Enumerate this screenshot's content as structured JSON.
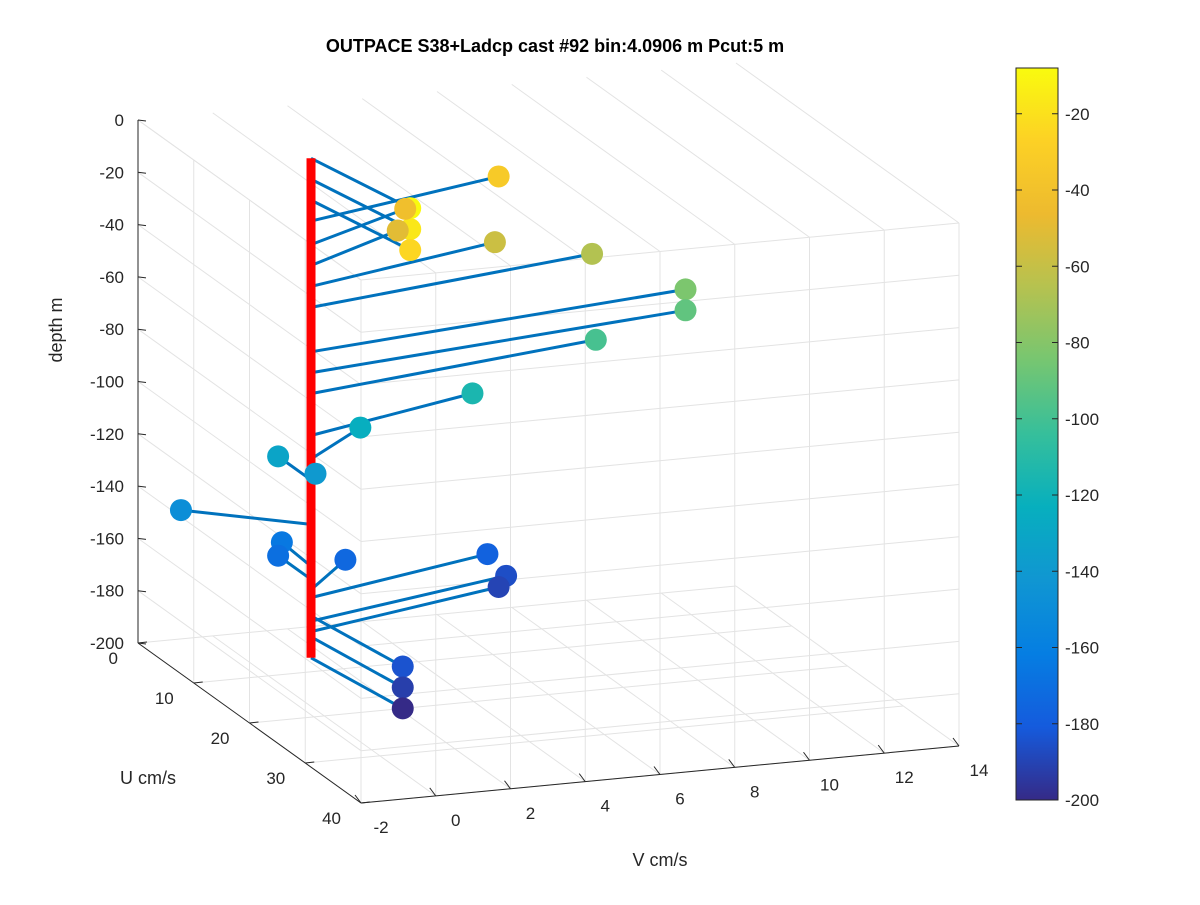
{
  "chart_data": {
    "type": "3d-line-scatter",
    "title": "OUTPACE S38+Ladcp cast #92 bin:4.0906 m  Pcut:5 m",
    "xlabel": "U cm/s",
    "ylabel": "V cm/s",
    "zlabel": "depth m",
    "xlim": [
      0,
      40
    ],
    "ylim": [
      -2,
      14
    ],
    "zlim": [
      -200,
      0
    ],
    "x_ticks": [
      "0",
      "10",
      "20",
      "30",
      "40"
    ],
    "y_ticks": [
      "-2",
      "0",
      "2",
      "4",
      "6",
      "8",
      "10",
      "12",
      "14"
    ],
    "z_ticks": [
      "0",
      "-20",
      "-40",
      "-60",
      "-80",
      "-100",
      "-120",
      "-140",
      "-160",
      "-180",
      "-200"
    ],
    "grid": true,
    "line_color": "#0072bd",
    "axis_line_color": "#ff0000",
    "colormap": "parula",
    "colorbar": {
      "position": "right",
      "lim": [
        -200,
        -8
      ],
      "ticks": [
        "-20",
        "-40",
        "-60",
        "-80",
        "-100",
        "-120",
        "-140",
        "-160",
        "-180",
        "-200"
      ]
    },
    "points": [
      {
        "u": 20.0,
        "v": 2.3,
        "z": -9
      },
      {
        "u": 20.0,
        "v": 2.3,
        "z": -17
      },
      {
        "u": 20.0,
        "v": 2.3,
        "z": -25
      },
      {
        "u": 1.0,
        "v": 7.5,
        "z": -33
      },
      {
        "u": 1.0,
        "v": 5.0,
        "z": -42
      },
      {
        "u": 1.0,
        "v": 4.8,
        "z": -50
      },
      {
        "u": 1.0,
        "v": 7.4,
        "z": -58
      },
      {
        "u": 1.0,
        "v": 10.0,
        "z": -66
      },
      {
        "u": 1.0,
        "v": 12.5,
        "z": -83
      },
      {
        "u": 1.0,
        "v": 12.5,
        "z": -91
      },
      {
        "u": 1.0,
        "v": 10.1,
        "z": -99
      },
      {
        "u": 1.0,
        "v": 6.8,
        "z": -115
      },
      {
        "u": 1.0,
        "v": 3.8,
        "z": -124
      },
      {
        "u": 1.0,
        "v": 1.6,
        "z": -132
      },
      {
        "u": 1.0,
        "v": 2.6,
        "z": -140
      },
      {
        "u": 1.0,
        "v": -1.0,
        "z": -149
      },
      {
        "u": 1.0,
        "v": 1.7,
        "z": -165
      },
      {
        "u": 1.0,
        "v": 1.6,
        "z": -170
      },
      {
        "u": 1.0,
        "v": 3.4,
        "z": -174
      },
      {
        "u": 1.0,
        "v": 7.2,
        "z": -177
      },
      {
        "u": 1.0,
        "v": 7.7,
        "z": -186
      },
      {
        "u": 1.0,
        "v": 7.5,
        "z": -190
      },
      {
        "u": 20.0,
        "v": 2.1,
        "z": -184
      },
      {
        "u": 20.0,
        "v": 2.1,
        "z": -192
      },
      {
        "u": 20.0,
        "v": 2.1,
        "z": -200
      }
    ]
  }
}
